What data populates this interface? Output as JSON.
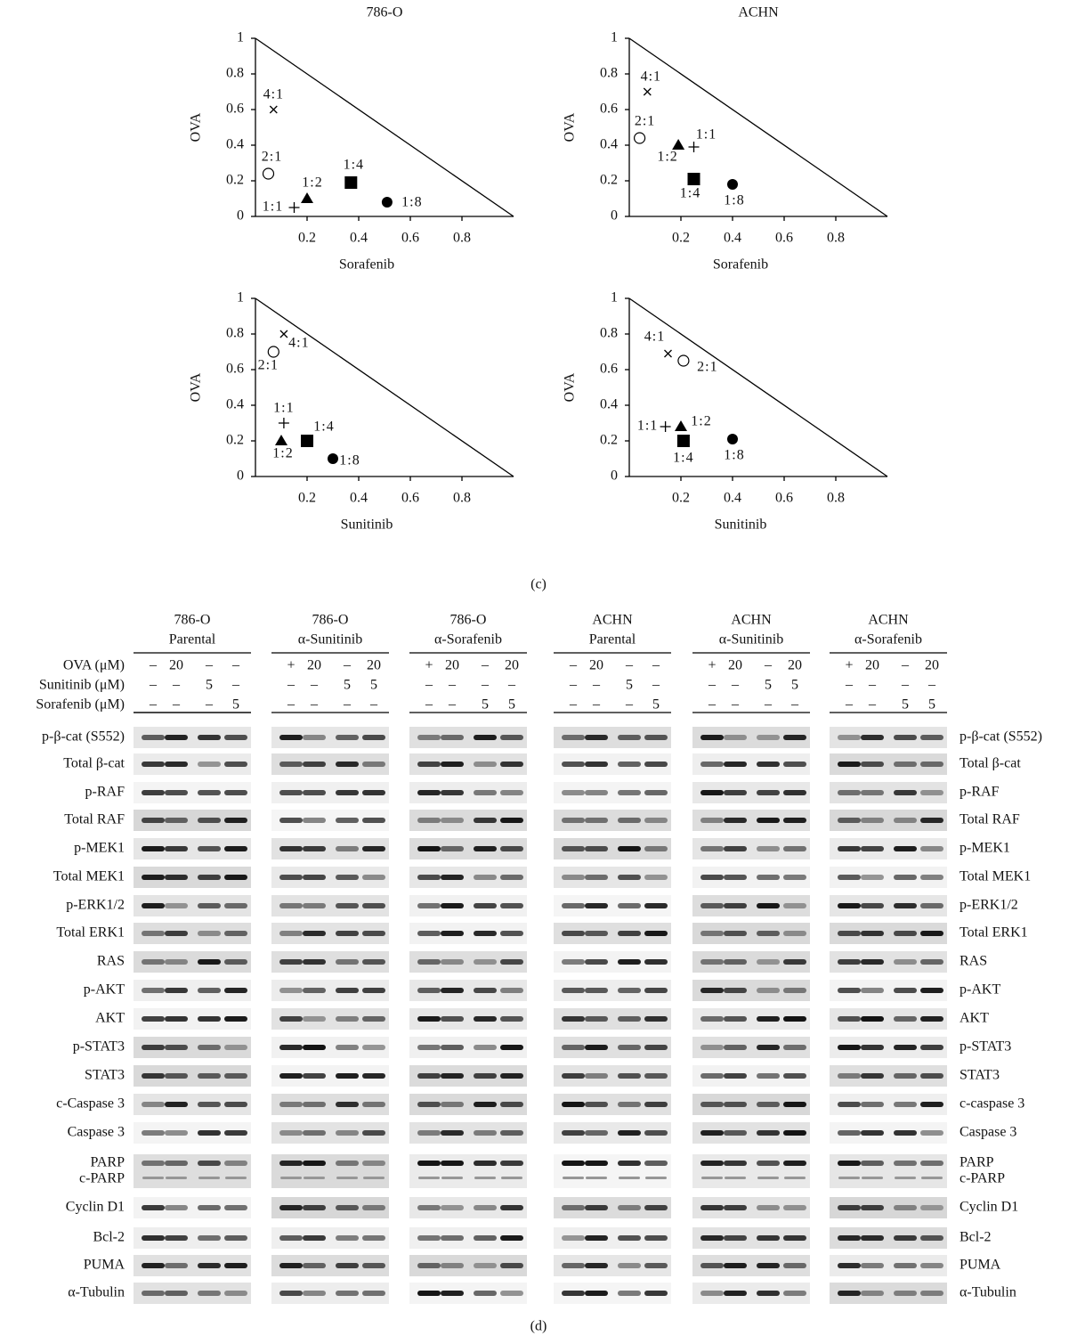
{
  "chart_data": [
    {
      "type": "scatter",
      "title": "786-O",
      "x_label": "Sorafenib",
      "y_label": "OVA",
      "xlim": [
        0,
        1
      ],
      "ylim": [
        0,
        1
      ],
      "xticks": [
        0.2,
        0.4,
        0.6,
        0.8
      ],
      "yticks": [
        0,
        0.2,
        0.4,
        0.6,
        0.8,
        1
      ],
      "labels": [
        "4:1",
        "2:1",
        "1:1",
        "1:2",
        "1:4",
        "1:8"
      ],
      "markers": [
        "x",
        "o",
        "+",
        "^",
        "s",
        "filled-o"
      ],
      "x": [
        0.07,
        0.05,
        0.15,
        0.2,
        0.37,
        0.51
      ],
      "values": [
        0.6,
        0.24,
        0.05,
        0.1,
        0.19,
        0.08
      ]
    },
    {
      "type": "scatter",
      "title": "ACHN",
      "x_label": "Sorafenib",
      "y_label": "OVA",
      "xlim": [
        0,
        1
      ],
      "ylim": [
        0,
        1
      ],
      "xticks": [
        0.2,
        0.4,
        0.6,
        0.8
      ],
      "yticks": [
        0,
        0.2,
        0.4,
        0.6,
        0.8,
        1
      ],
      "labels": [
        "4:1",
        "2:1",
        "1:1",
        "1:2",
        "1:4",
        "1:8"
      ],
      "markers": [
        "x",
        "o",
        "+",
        "^",
        "s",
        "filled-o"
      ],
      "x": [
        0.07,
        0.04,
        0.25,
        0.19,
        0.25,
        0.4
      ],
      "values": [
        0.7,
        0.44,
        0.39,
        0.4,
        0.21,
        0.18
      ]
    },
    {
      "type": "scatter",
      "x_label": "Sunitinib",
      "y_label": "OVA",
      "xlim": [
        0,
        1
      ],
      "ylim": [
        0,
        1
      ],
      "xticks": [
        0.2,
        0.4,
        0.6,
        0.8
      ],
      "yticks": [
        0,
        0.2,
        0.4,
        0.6,
        0.8,
        1
      ],
      "labels": [
        "4:1",
        "2:1",
        "1:1",
        "1:2",
        "1:4",
        "1:8"
      ],
      "markers": [
        "x",
        "o",
        "+",
        "^",
        "s",
        "filled-o"
      ],
      "x": [
        0.11,
        0.07,
        0.11,
        0.1,
        0.2,
        0.3
      ],
      "values": [
        0.8,
        0.7,
        0.3,
        0.2,
        0.2,
        0.1
      ]
    },
    {
      "type": "scatter",
      "x_label": "Sunitinib",
      "y_label": "OVA",
      "xlim": [
        0,
        1
      ],
      "ylim": [
        0,
        1
      ],
      "xticks": [
        0.2,
        0.4,
        0.6,
        0.8
      ],
      "yticks": [
        0,
        0.2,
        0.4,
        0.6,
        0.8,
        1
      ],
      "labels": [
        "4:1",
        "2:1",
        "1:1",
        "1:2",
        "1:4",
        "1:8"
      ],
      "markers": [
        "x",
        "o",
        "+",
        "^",
        "s",
        "filled-o"
      ],
      "x": [
        0.15,
        0.21,
        0.14,
        0.2,
        0.21,
        0.4
      ],
      "values": [
        0.69,
        0.65,
        0.28,
        0.28,
        0.2,
        0.21
      ]
    }
  ],
  "panel_c_label": "(c)",
  "blot": {
    "label": "(d)",
    "treatment_labels": [
      "OVA (μM)",
      "Sunitinib (μM)",
      "Sorafenib (μM)"
    ],
    "groups": [
      {
        "title": [
          "786-O",
          "Parental"
        ],
        "treatments": [
          [
            "–",
            "20",
            "–",
            "–"
          ],
          [
            "–",
            "–",
            "5",
            "–"
          ],
          [
            "–",
            "–",
            "–",
            "5"
          ]
        ]
      },
      {
        "title": [
          "786-O",
          "α-Sunitinib"
        ],
        "treatments": [
          [
            "+",
            "20",
            "–",
            "20"
          ],
          [
            "–",
            "–",
            "5",
            "5"
          ],
          [
            "–",
            "–",
            "–",
            "–"
          ]
        ]
      },
      {
        "title": [
          "786-O",
          "α-Sorafenib"
        ],
        "treatments": [
          [
            "+",
            "20",
            "–",
            "20"
          ],
          [
            "–",
            "–",
            "–",
            "–"
          ],
          [
            "–",
            "–",
            "5",
            "5"
          ]
        ]
      },
      {
        "title": [
          "ACHN",
          "Parental"
        ],
        "treatments": [
          [
            "–",
            "20",
            "–",
            "–"
          ],
          [
            "–",
            "–",
            "5",
            "–"
          ],
          [
            "–",
            "–",
            "–",
            "5"
          ]
        ]
      },
      {
        "title": [
          "ACHN",
          "α-Sunitinib"
        ],
        "treatments": [
          [
            "+",
            "20",
            "–",
            "20"
          ],
          [
            "–",
            "–",
            "5",
            "5"
          ],
          [
            "–",
            "–",
            "–",
            "–"
          ]
        ]
      },
      {
        "title": [
          "ACHN",
          "α-Sorafenib"
        ],
        "treatments": [
          [
            "+",
            "20",
            "–",
            "20"
          ],
          [
            "–",
            "–",
            "–",
            "–"
          ],
          [
            "–",
            "–",
            "5",
            "5"
          ]
        ]
      }
    ],
    "rows_left": [
      [
        "p-β-cat (S552)"
      ],
      [
        "Total β-cat"
      ],
      [
        "p-RAF"
      ],
      [
        "Total RAF"
      ],
      [
        "p-MEK1"
      ],
      [
        "Total MEK1"
      ],
      [
        "p-ERK1/2"
      ],
      [
        "Total ERK1"
      ],
      [
        "RAS"
      ],
      [
        "p-AKT"
      ],
      [
        "AKT"
      ],
      [
        "p-STAT3"
      ],
      [
        "STAT3"
      ],
      [
        "c-Caspase 3"
      ],
      [
        "Caspase 3"
      ],
      [
        "PARP",
        "c-PARP"
      ],
      [
        "Cyclin D1"
      ],
      [
        "Bcl-2"
      ],
      [
        "PUMA"
      ],
      [
        "α-Tubulin"
      ]
    ],
    "rows_right": [
      [
        "p-β-cat (S552)"
      ],
      [
        "Total β-cat"
      ],
      [
        "p-RAF"
      ],
      [
        "Total RAF"
      ],
      [
        "p-MEK1"
      ],
      [
        "Total MEK1"
      ],
      [
        "p-ERK1/2"
      ],
      [
        "Total ERK1"
      ],
      [
        "RAS"
      ],
      [
        "p-AKT"
      ],
      [
        "AKT"
      ],
      [
        "p-STAT3"
      ],
      [
        "STAT3"
      ],
      [
        "c-caspase 3"
      ],
      [
        "Caspase 3"
      ],
      [
        "PARP",
        "c-PARP"
      ],
      [
        "Cyclin D1"
      ],
      [
        "Bcl-2"
      ],
      [
        "PUMA"
      ],
      [
        "α-Tubulin"
      ]
    ]
  }
}
